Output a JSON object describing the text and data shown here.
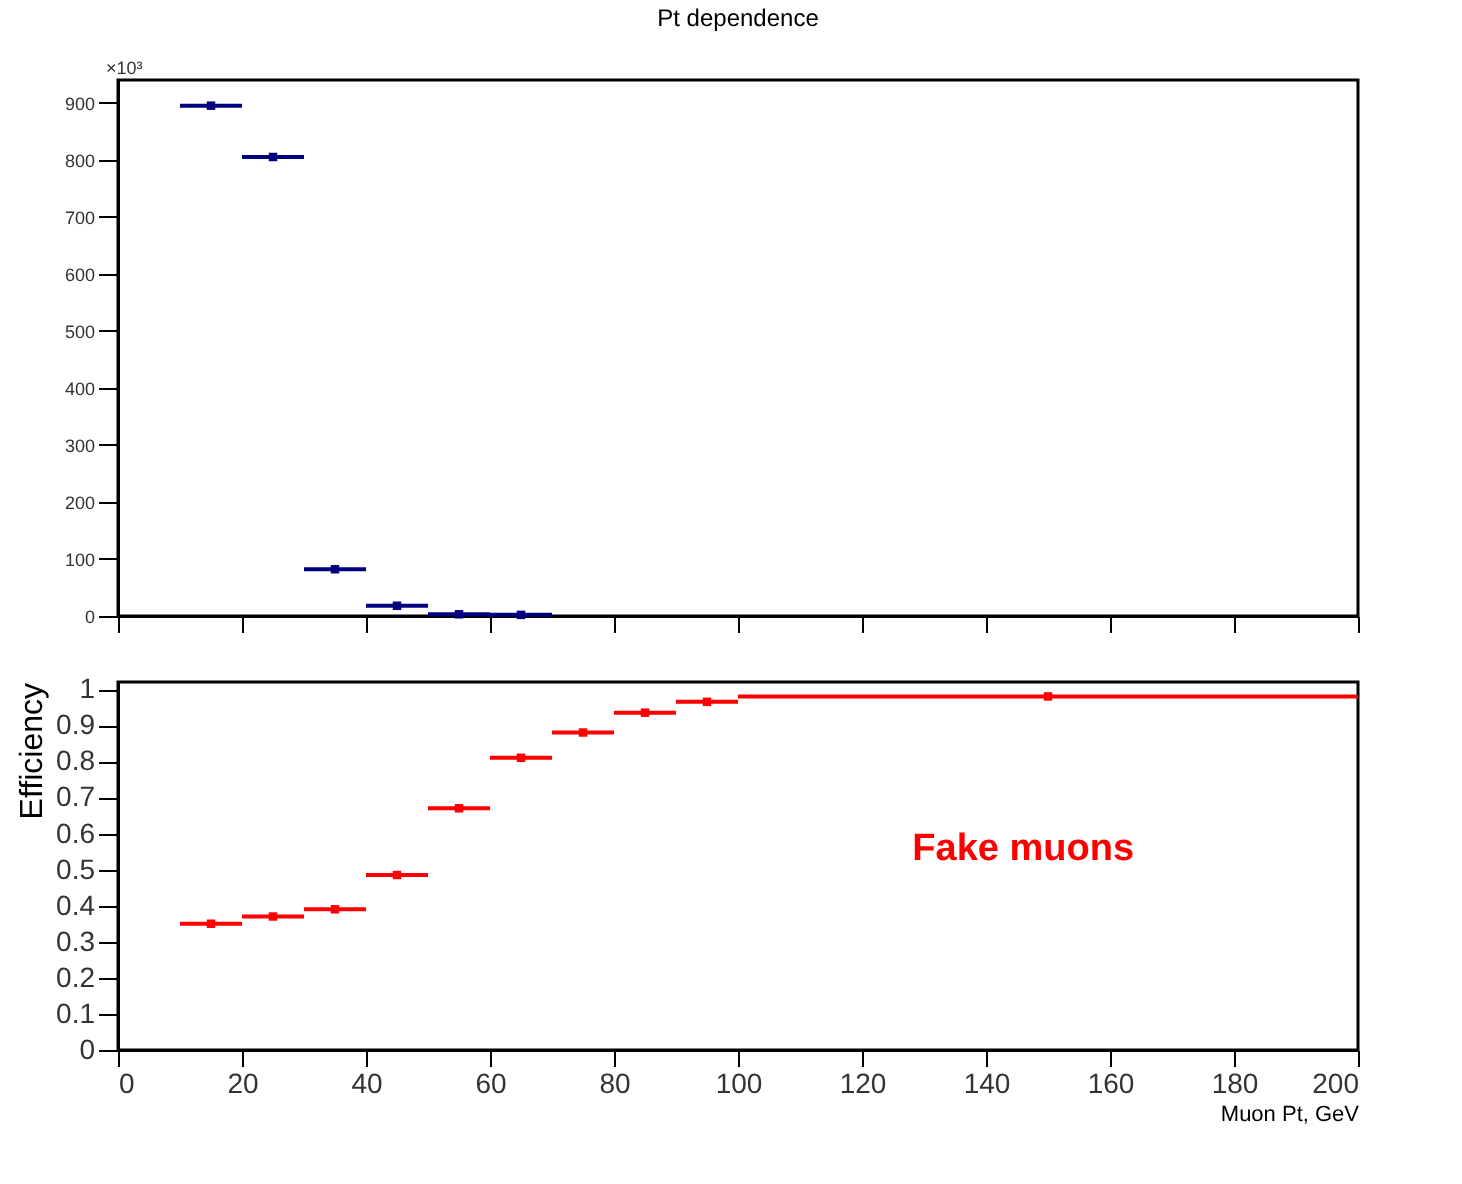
{
  "chart_data": [
    {
      "type": "scatter",
      "title": "Pt dependence",
      "annotations": [
        "×10³"
      ],
      "marker": "square",
      "tick_labels": "y",
      "series": [
        {
          "color": "#000080",
          "x": [
            15,
            25,
            35,
            45,
            55,
            65
          ],
          "values": [
            895,
            805,
            82,
            18,
            3,
            2
          ],
          "xerrors": [
            5,
            5,
            5,
            5,
            5,
            5
          ]
        }
      ],
      "xlim": [
        0,
        200
      ],
      "xticks": [
        0,
        20,
        40,
        60,
        80,
        100,
        120,
        140,
        160,
        180,
        200
      ],
      "ylim": [
        0,
        940
      ],
      "yticks": [
        0,
        100,
        200,
        300,
        400,
        500,
        600,
        700,
        800,
        900
      ]
    },
    {
      "type": "scatter",
      "xlabel": "Muon Pt, GeV",
      "ylabel": "Efficiency",
      "annotations": [
        "Fake muons"
      ],
      "marker": "square",
      "series": [
        {
          "color": "#ff0000",
          "x": [
            15,
            25,
            35,
            45,
            55,
            65,
            75,
            85,
            95,
            150
          ],
          "values": [
            0.35,
            0.37,
            0.39,
            0.485,
            0.67,
            0.81,
            0.88,
            0.935,
            0.965,
            0.98
          ],
          "xerrors": [
            5,
            5,
            5,
            5,
            5,
            5,
            5,
            5,
            5,
            50
          ]
        }
      ],
      "xlim": [
        0,
        200
      ],
      "xticks": [
        0,
        20,
        40,
        60,
        80,
        100,
        120,
        140,
        160,
        180,
        200
      ],
      "ylim": [
        0,
        1.02
      ],
      "yticks": [
        0,
        0.1,
        0.2,
        0.3,
        0.4,
        0.5,
        0.6,
        0.7,
        0.8,
        0.9,
        1
      ]
    }
  ]
}
